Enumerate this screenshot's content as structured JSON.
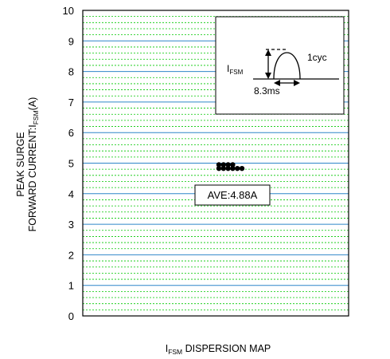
{
  "chart_data": {
    "type": "scatter",
    "title": "",
    "xlabel": {
      "main": "I",
      "sub": "FSM",
      "rest": " DISPERSION MAP"
    },
    "ylabel": {
      "line1": "PEAK SURGE",
      "line2_prefix": "FORWARD CURRENT:I",
      "line2_sub": "FSM",
      "line2_suffix": "(A)"
    },
    "ylim": [
      0,
      10
    ],
    "yticks": [
      0,
      1,
      2,
      3,
      4,
      5,
      6,
      7,
      8,
      9,
      10
    ],
    "minor_step": 0.2,
    "grid": true,
    "points": [
      {
        "row": 0,
        "col": 0,
        "y": 5.0
      },
      {
        "row": 0,
        "col": 1,
        "y": 5.0
      },
      {
        "row": 0,
        "col": 2,
        "y": 5.0
      },
      {
        "row": 0,
        "col": 3,
        "y": 5.0
      },
      {
        "row": 1,
        "col": 0,
        "y": 4.8
      },
      {
        "row": 1,
        "col": 1,
        "y": 4.8
      },
      {
        "row": 1,
        "col": 2,
        "y": 4.8
      },
      {
        "row": 1,
        "col": 3,
        "y": 4.8
      },
      {
        "row": 1,
        "col": 4,
        "y": 4.8
      },
      {
        "row": 1,
        "col": 5,
        "y": 4.8
      }
    ],
    "annotation": {
      "text": "AVE:4.88A"
    },
    "inset": {
      "ifsm_main": "I",
      "ifsm_sub": "FSM",
      "cycle": "1cyc",
      "period": "8.3ms"
    },
    "colors": {
      "major_grid": "#2f86c9",
      "minor_grid": "#00c800",
      "points": "#000000"
    }
  }
}
